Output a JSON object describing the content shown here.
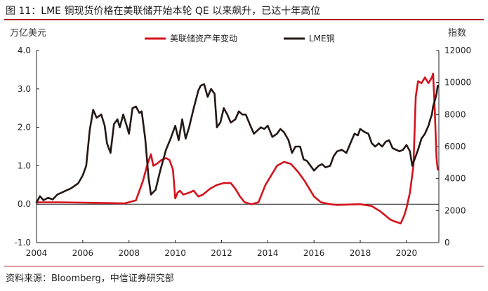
{
  "figure": {
    "title": "图 11：LME 铜现货价格在美联储开始本轮 QE 以来飙升，已达十年高位",
    "source": "资料来源：Bloomberg，中信证券研究部"
  },
  "chart_data": {
    "type": "line",
    "ylabel_left": "万亿美元",
    "ylabel_right": "指数",
    "y_left_range": [
      -1.0,
      4.0
    ],
    "y_left_ticks": [
      "4.0",
      "3.0",
      "2.0",
      "1.0",
      "0.0",
      "-1.0"
    ],
    "y_left_tick_values": [
      4,
      3,
      2,
      1,
      0,
      -1
    ],
    "y_right_range": [
      0,
      12000
    ],
    "y_right_ticks": [
      "12000",
      "10000",
      "8000",
      "6000",
      "4000",
      "2000",
      "0"
    ],
    "y_right_tick_values": [
      12000,
      10000,
      8000,
      6000,
      4000,
      2000,
      0
    ],
    "x_range": [
      2004,
      2021.4
    ],
    "x_ticks": [
      "2004",
      "2006",
      "2008",
      "2010",
      "2012",
      "2014",
      "2016",
      "2018",
      "2020"
    ],
    "x_tick_values": [
      2004,
      2006,
      2008,
      2010,
      2012,
      2014,
      2016,
      2018,
      2020
    ],
    "legend_position": "top-center",
    "series": [
      {
        "name": "美联储资产年变动",
        "axis": "left",
        "color": "#d4121d",
        "points": [
          [
            2004.0,
            0.05
          ],
          [
            2005.0,
            0.05
          ],
          [
            2006.0,
            0.04
          ],
          [
            2007.0,
            0.03
          ],
          [
            2007.8,
            0.02
          ],
          [
            2008.3,
            0.1
          ],
          [
            2008.6,
            0.6
          ],
          [
            2008.8,
            1.05
          ],
          [
            2008.95,
            1.3
          ],
          [
            2009.05,
            1.0
          ],
          [
            2009.2,
            1.05
          ],
          [
            2009.4,
            1.15
          ],
          [
            2009.6,
            1.2
          ],
          [
            2009.75,
            1.15
          ],
          [
            2009.9,
            0.9
          ],
          [
            2010.0,
            0.15
          ],
          [
            2010.1,
            0.3
          ],
          [
            2010.2,
            0.35
          ],
          [
            2010.35,
            0.25
          ],
          [
            2010.6,
            0.3
          ],
          [
            2010.8,
            0.35
          ],
          [
            2011.0,
            0.2
          ],
          [
            2011.2,
            0.25
          ],
          [
            2011.5,
            0.4
          ],
          [
            2011.8,
            0.5
          ],
          [
            2012.1,
            0.55
          ],
          [
            2012.4,
            0.55
          ],
          [
            2012.6,
            0.4
          ],
          [
            2012.8,
            0.2
          ],
          [
            2013.0,
            0.05
          ],
          [
            2013.3,
            0.0
          ],
          [
            2013.6,
            0.05
          ],
          [
            2013.9,
            0.5
          ],
          [
            2014.4,
            1.0
          ],
          [
            2014.7,
            1.1
          ],
          [
            2015.0,
            1.05
          ],
          [
            2015.3,
            0.85
          ],
          [
            2015.6,
            0.6
          ],
          [
            2016.0,
            0.2
          ],
          [
            2016.3,
            0.05
          ],
          [
            2016.7,
            0.0
          ],
          [
            2017.0,
            -0.02
          ],
          [
            2017.5,
            -0.01
          ],
          [
            2018.0,
            0.0
          ],
          [
            2018.5,
            -0.05
          ],
          [
            2018.9,
            -0.2
          ],
          [
            2019.3,
            -0.4
          ],
          [
            2019.5,
            -0.45
          ],
          [
            2019.75,
            -0.5
          ],
          [
            2019.9,
            -0.3
          ],
          [
            2020.0,
            -0.1
          ],
          [
            2020.15,
            0.3
          ],
          [
            2020.3,
            1.0
          ],
          [
            2020.4,
            2.8
          ],
          [
            2020.5,
            3.2
          ],
          [
            2020.65,
            3.15
          ],
          [
            2020.8,
            3.3
          ],
          [
            2020.95,
            3.15
          ],
          [
            2021.1,
            3.3
          ],
          [
            2021.15,
            3.4
          ],
          [
            2021.22,
            2.5
          ],
          [
            2021.3,
            1.2
          ],
          [
            2021.35,
            0.9
          ]
        ]
      },
      {
        "name": "LME铜",
        "axis": "right",
        "color": "#231815",
        "points": [
          [
            2004.0,
            2500
          ],
          [
            2004.15,
            2900
          ],
          [
            2004.3,
            2650
          ],
          [
            2004.5,
            2800
          ],
          [
            2004.7,
            2700
          ],
          [
            2004.9,
            3000
          ],
          [
            2005.2,
            3200
          ],
          [
            2005.5,
            3400
          ],
          [
            2005.8,
            3700
          ],
          [
            2006.0,
            4200
          ],
          [
            2006.15,
            4800
          ],
          [
            2006.3,
            7000
          ],
          [
            2006.45,
            8300
          ],
          [
            2006.6,
            7800
          ],
          [
            2006.8,
            8000
          ],
          [
            2006.95,
            7300
          ],
          [
            2007.05,
            6200
          ],
          [
            2007.2,
            5600
          ],
          [
            2007.35,
            7400
          ],
          [
            2007.5,
            7700
          ],
          [
            2007.6,
            7200
          ],
          [
            2007.75,
            8000
          ],
          [
            2007.9,
            7300
          ],
          [
            2008.0,
            6800
          ],
          [
            2008.15,
            8400
          ],
          [
            2008.3,
            8500
          ],
          [
            2008.45,
            8100
          ],
          [
            2008.55,
            8200
          ],
          [
            2008.7,
            6500
          ],
          [
            2008.85,
            4000
          ],
          [
            2008.95,
            3000
          ],
          [
            2009.15,
            3300
          ],
          [
            2009.35,
            4500
          ],
          [
            2009.6,
            5800
          ],
          [
            2009.8,
            6500
          ],
          [
            2010.0,
            7300
          ],
          [
            2010.15,
            6400
          ],
          [
            2010.3,
            7700
          ],
          [
            2010.45,
            6500
          ],
          [
            2010.6,
            7200
          ],
          [
            2010.8,
            8400
          ],
          [
            2011.0,
            9500
          ],
          [
            2011.1,
            9800
          ],
          [
            2011.25,
            9900
          ],
          [
            2011.4,
            9100
          ],
          [
            2011.55,
            9600
          ],
          [
            2011.7,
            9300
          ],
          [
            2011.8,
            7200
          ],
          [
            2011.95,
            7500
          ],
          [
            2012.1,
            8400
          ],
          [
            2012.25,
            8000
          ],
          [
            2012.4,
            7500
          ],
          [
            2012.6,
            7700
          ],
          [
            2012.75,
            8200
          ],
          [
            2012.9,
            8000
          ],
          [
            2013.05,
            8000
          ],
          [
            2013.25,
            7300
          ],
          [
            2013.4,
            6800
          ],
          [
            2013.55,
            7000
          ],
          [
            2013.7,
            7200
          ],
          [
            2013.85,
            7100
          ],
          [
            2014.0,
            7300
          ],
          [
            2014.2,
            6600
          ],
          [
            2014.4,
            6800
          ],
          [
            2014.55,
            7100
          ],
          [
            2014.7,
            6900
          ],
          [
            2014.9,
            6400
          ],
          [
            2015.05,
            5600
          ],
          [
            2015.2,
            6000
          ],
          [
            2015.4,
            6000
          ],
          [
            2015.55,
            5200
          ],
          [
            2015.7,
            5100
          ],
          [
            2015.9,
            4700
          ],
          [
            2016.0,
            4500
          ],
          [
            2016.2,
            4800
          ],
          [
            2016.35,
            4900
          ],
          [
            2016.5,
            4700
          ],
          [
            2016.7,
            4800
          ],
          [
            2016.85,
            5400
          ],
          [
            2017.0,
            5700
          ],
          [
            2017.2,
            5800
          ],
          [
            2017.4,
            5600
          ],
          [
            2017.6,
            6300
          ],
          [
            2017.75,
            6800
          ],
          [
            2017.9,
            6700
          ],
          [
            2018.0,
            7100
          ],
          [
            2018.2,
            6900
          ],
          [
            2018.35,
            6800
          ],
          [
            2018.5,
            6200
          ],
          [
            2018.65,
            6000
          ],
          [
            2018.8,
            6200
          ],
          [
            2018.95,
            6000
          ],
          [
            2019.1,
            6300
          ],
          [
            2019.25,
            6400
          ],
          [
            2019.4,
            5900
          ],
          [
            2019.55,
            5800
          ],
          [
            2019.7,
            5700
          ],
          [
            2019.85,
            5800
          ],
          [
            2020.0,
            6100
          ],
          [
            2020.15,
            5700
          ],
          [
            2020.25,
            4800
          ],
          [
            2020.35,
            5200
          ],
          [
            2020.5,
            5800
          ],
          [
            2020.65,
            6500
          ],
          [
            2020.8,
            6800
          ],
          [
            2020.95,
            7300
          ],
          [
            2021.05,
            7800
          ],
          [
            2021.1,
            8000
          ],
          [
            2021.15,
            8500
          ],
          [
            2021.25,
            9000
          ],
          [
            2021.3,
            9300
          ],
          [
            2021.35,
            9800
          ]
        ]
      }
    ]
  }
}
